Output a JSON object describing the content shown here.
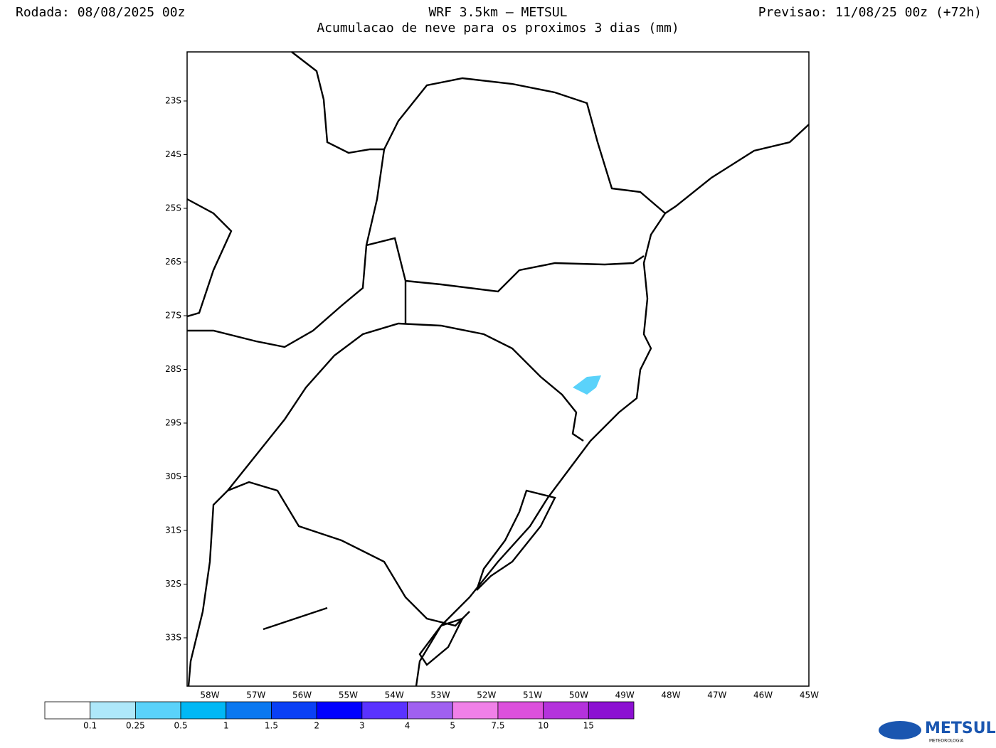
{
  "header": {
    "left": "Rodada: 08/08/2025 00z",
    "title": "WRF 3.5km — METSUL",
    "subtitle": "Acumulacao de neve para os proximos 3 dias (mm)",
    "right": "Previsao: 11/08/25 00z (+72h)"
  },
  "map": {
    "lat_labels": [
      "23S",
      "24S",
      "25S",
      "26S",
      "27S",
      "28S",
      "29S",
      "30S",
      "31S",
      "32S",
      "33S"
    ],
    "lon_labels": [
      "58W",
      "57W",
      "56W",
      "55W",
      "54W",
      "53W",
      "52W",
      "51W",
      "50W",
      "49W",
      "48W",
      "47W",
      "46W",
      "45W"
    ]
  },
  "colorbar": {
    "colors": [
      "#ffffff",
      "#aee8fa",
      "#5ad2fa",
      "#00b8f5",
      "#0a78f0",
      "#0a40f5",
      "#0000ff",
      "#5a32ff",
      "#a060f0",
      "#f080e8",
      "#dc50dc",
      "#b432dc",
      "#8c10d2"
    ],
    "levels": [
      0.1,
      0.25,
      0.5,
      1,
      1.5,
      2,
      3,
      4,
      5,
      7.5,
      10,
      15
    ]
  },
  "logo": {
    "name": "METSUL",
    "tagline": "METEOROLOGIA"
  }
}
